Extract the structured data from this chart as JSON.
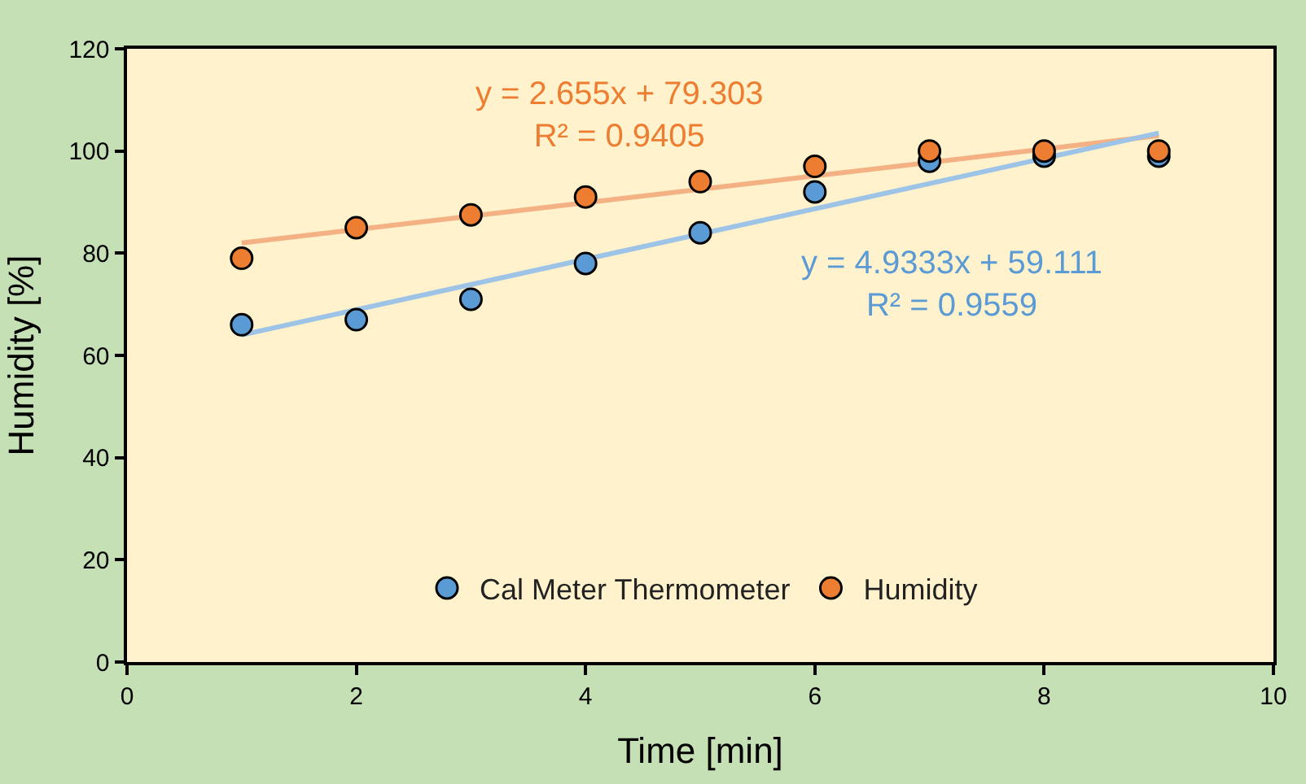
{
  "chart_data": {
    "type": "scatter",
    "xlabel": "Time [min]",
    "ylabel": "Humidity [%]",
    "xlim": [
      0,
      10
    ],
    "xticks": [
      0,
      2,
      4,
      6,
      8,
      10
    ],
    "ylim": [
      0,
      120
    ],
    "yticks": [
      0,
      20,
      40,
      60,
      80,
      100,
      120
    ],
    "grid": false,
    "legend": "bottom",
    "marker": "circle",
    "series": [
      {
        "name": "Cal Meter Thermometer",
        "color": "#5b9bd5",
        "x": [
          1,
          2,
          3,
          4,
          5,
          6,
          7,
          8,
          9
        ],
        "values": [
          66,
          67,
          71,
          78,
          84,
          92,
          98,
          99,
          99
        ]
      },
      {
        "name": "Humidity",
        "color": "#ed7d31",
        "x": [
          1,
          2,
          3,
          4,
          5,
          6,
          7,
          8,
          9
        ],
        "values": [
          79,
          85,
          87.5,
          91,
          94,
          97,
          100,
          100,
          100
        ]
      },
      {
        "type": "line",
        "marker": "none",
        "color": "#9dc3e6",
        "x": [
          1,
          9
        ],
        "values": [
          64,
          103.5
        ]
      },
      {
        "type": "line",
        "marker": "none",
        "color": "#f4b183",
        "x": [
          1,
          9
        ],
        "values": [
          82,
          103
        ]
      }
    ],
    "annotations": [
      "y = 2.655x + 79.303\nR² = 0.9405",
      "y = 4.9333x + 59.111\nR² = 0.9559"
    ]
  }
}
